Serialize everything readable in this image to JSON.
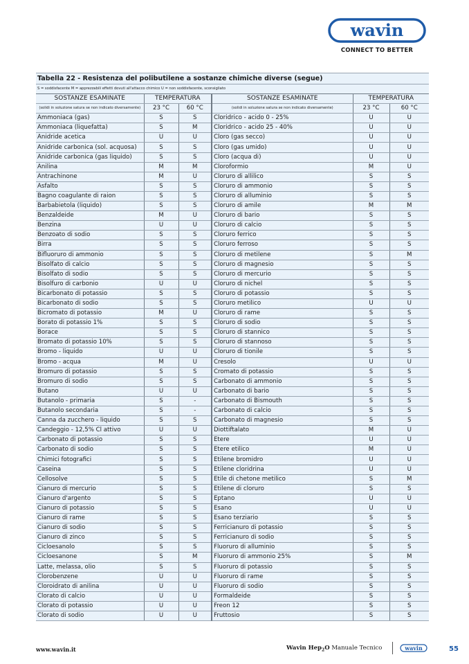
{
  "header": {
    "logo_text": "wavin",
    "tagline": "CONNECT TO BETTER",
    "brand_color": "#1e5ba8"
  },
  "table": {
    "title": "Tabella 22 - Resistenza del polibutilene a sostanze chimiche diverse (segue)",
    "legend": "S = soddisfacente  M = apprezzabili effetti dovuti all'attacco chimico  U = non soddisfacente, sconsigliato",
    "col_substance": "SOSTANZE ESAMINATE",
    "col_temperature": "TEMPERATURA",
    "col_note": "(solidi in soluzione satura se non indicato diversamente)",
    "col_23": "23 °C",
    "col_60": "60 °C",
    "rows": [
      [
        [
          "Ammoniaca (gas)",
          "S",
          "S"
        ],
        [
          "Cloridrico - acido 0 - 25%",
          "U",
          "U"
        ]
      ],
      [
        [
          "Ammoniaca (liquefatta)",
          "S",
          "M"
        ],
        [
          "Cloridrico - acido 25 - 40%",
          "U",
          "U"
        ]
      ],
      [
        [
          "Anidride acetica",
          "U",
          "U"
        ],
        [
          "Cloro (gas secco)",
          "U",
          "U"
        ]
      ],
      [
        [
          "Anidride carbonica (sol. acquosa)",
          "S",
          "S"
        ],
        [
          "Cloro (gas umido)",
          "U",
          "U"
        ]
      ],
      [
        [
          "Anidride carbonica (gas liquido)",
          "S",
          "S"
        ],
        [
          "Cloro (acqua di)",
          "U",
          "U"
        ]
      ],
      [
        [
          "Anilina",
          "M",
          "M"
        ],
        [
          "Cloroformio",
          "M",
          "U"
        ]
      ],
      [
        [
          "Antrachinone",
          "M",
          "U"
        ],
        [
          "Cloruro di allilico",
          "S",
          "S"
        ]
      ],
      [
        [
          "Asfalto",
          "S",
          "S"
        ],
        [
          "Cloruro di ammonio",
          "S",
          "S"
        ]
      ],
      [
        [
          "Bagno coagulante di raion",
          "S",
          "S"
        ],
        [
          "Cloruro di alluminio",
          "S",
          "S"
        ]
      ],
      [
        [
          "Barbabietola (liquido)",
          "S",
          "S"
        ],
        [
          "Cloruro di amile",
          "M",
          "M"
        ]
      ],
      [
        [
          "Benzaldeide",
          "M",
          "U"
        ],
        [
          "Cloruro di bario",
          "S",
          "S"
        ]
      ],
      [
        [
          "Benzina",
          "U",
          "U"
        ],
        [
          "Cloruro di calcio",
          "S",
          "S"
        ]
      ],
      [
        [
          "Benzoato di sodio",
          "S",
          "S"
        ],
        [
          "Cloruro ferrico",
          "S",
          "S"
        ]
      ],
      [
        [
          "Birra",
          "S",
          "S"
        ],
        [
          "Cloruro ferroso",
          "S",
          "S"
        ]
      ],
      [
        [
          "Bifluoruro di ammonio",
          "S",
          "S"
        ],
        [
          "Cloruro di metilene",
          "S",
          "M"
        ]
      ],
      [
        [
          "Bisolfato di calcio",
          "S",
          "S"
        ],
        [
          "Cloruro di magnesio",
          "S",
          "S"
        ]
      ],
      [
        [
          "Bisolfato di sodio",
          "S",
          "S"
        ],
        [
          "Cloruro di mercurio",
          "S",
          "S"
        ]
      ],
      [
        [
          "Bisolfuro di carbonio",
          "U",
          "U"
        ],
        [
          "Cloruro di nichel",
          "S",
          "S"
        ]
      ],
      [
        [
          "Bicarbonato di potassio",
          "S",
          "S"
        ],
        [
          "Cloruro di potassio",
          "S",
          "S"
        ]
      ],
      [
        [
          "Bicarbonato di sodio",
          "S",
          "S"
        ],
        [
          "Cloruro metilico",
          "U",
          "U"
        ]
      ],
      [
        [
          "Bicromato di potassio",
          "M",
          "U"
        ],
        [
          "Cloruro di rame",
          "S",
          "S"
        ]
      ],
      [
        [
          "Borato di potassio 1%",
          "S",
          "S"
        ],
        [
          "Cloruro di sodio",
          "S",
          "S"
        ]
      ],
      [
        [
          "Borace",
          "S",
          "S"
        ],
        [
          "Cloruro di stannico",
          "S",
          "S"
        ]
      ],
      [
        [
          "Bromato di potassio 10%",
          "S",
          "S"
        ],
        [
          "Cloruro di stannoso",
          "S",
          "S"
        ]
      ],
      [
        [
          "Bromo - liquido",
          "U",
          "U"
        ],
        [
          "Cloruro di tionile",
          "S",
          "S"
        ]
      ],
      [
        [
          "Bromo - acqua",
          "M",
          "U"
        ],
        [
          "Cresolo",
          "U",
          "U"
        ]
      ],
      [
        [
          "Bromuro di potassio",
          "S",
          "S"
        ],
        [
          "Cromato di potassio",
          "S",
          "S"
        ]
      ],
      [
        [
          "Bromuro di sodio",
          "S",
          "S"
        ],
        [
          "Carbonato di ammonio",
          "S",
          "S"
        ]
      ],
      [
        [
          "Butano",
          "U",
          "U"
        ],
        [
          "Carbonato di bario",
          "S",
          "S"
        ]
      ],
      [
        [
          "Butanolo - primaria",
          "S",
          "-"
        ],
        [
          "Carbonato di Bismouth",
          "S",
          "S"
        ]
      ],
      [
        [
          "Butanolo secondaria",
          "S",
          "-"
        ],
        [
          "Carbonato di calcio",
          "S",
          "S"
        ]
      ],
      [
        [
          "Canna da zucchero - liquido",
          "S",
          "S"
        ],
        [
          "Carbonato di magnesio",
          "S",
          "S"
        ]
      ],
      [
        [
          "Candeggio - 12,5% Cl attivo",
          "U",
          "U"
        ],
        [
          "Diottiftalato",
          "M",
          "U"
        ]
      ],
      [
        [
          "Carbonato di potassio",
          "S",
          "S"
        ],
        [
          "Etere",
          "U",
          "U"
        ]
      ],
      [
        [
          "Carbonato di sodio",
          "S",
          "S"
        ],
        [
          "Etere etilico",
          "M",
          "U"
        ]
      ],
      [
        [
          "Chimici fotografici",
          "S",
          "S"
        ],
        [
          "Etilene bromidro",
          "U",
          "U"
        ]
      ],
      [
        [
          "Caseina",
          "S",
          "S"
        ],
        [
          "Etilene cloridrina",
          "U",
          "U"
        ]
      ],
      [
        [
          "Cellosolve",
          "S",
          "S"
        ],
        [
          "Etile di chetone metilico",
          "S",
          "M"
        ]
      ],
      [
        [
          "Cianuro di mercurio",
          "S",
          "S"
        ],
        [
          "Etilene di cloruro",
          "S",
          "S"
        ]
      ],
      [
        [
          "Cianuro d'argento",
          "S",
          "S"
        ],
        [
          "Eptano",
          "U",
          "U"
        ]
      ],
      [
        [
          "Cianuro di potassio",
          "S",
          "S"
        ],
        [
          "Esano",
          "U",
          "U"
        ]
      ],
      [
        [
          "Cianuro di rame",
          "S",
          "S"
        ],
        [
          "Esano terziario",
          "S",
          "S"
        ]
      ],
      [
        [
          "Cianuro di sodio",
          "S",
          "S"
        ],
        [
          "Ferricianuro di potassio",
          "S",
          "S"
        ]
      ],
      [
        [
          "Cianuro di zinco",
          "S",
          "S"
        ],
        [
          "Ferricianuro di sodio",
          "S",
          "S"
        ]
      ],
      [
        [
          "Cicloesanolo",
          "S",
          "S"
        ],
        [
          "Fluoruro di alluminio",
          "S",
          "S"
        ]
      ],
      [
        [
          "Cicloesanone",
          "S",
          "M"
        ],
        [
          "Fluoruro di ammonio 25%",
          "S",
          "M"
        ]
      ],
      [
        [
          "Latte, melassa, olio",
          "S",
          "S"
        ],
        [
          "Fluoruro di potassio",
          "S",
          "S"
        ]
      ],
      [
        [
          "Clorobenzene",
          "U",
          "U"
        ],
        [
          "Fluoruro di rame",
          "S",
          "S"
        ]
      ],
      [
        [
          "Cloroidrato di anilina",
          "U",
          "U"
        ],
        [
          "Fluoruro di sodio",
          "S",
          "S"
        ]
      ],
      [
        [
          "Clorato di calcio",
          "U",
          "U"
        ],
        [
          "Formaldeide",
          "S",
          "S"
        ]
      ],
      [
        [
          "Clorato di potassio",
          "U",
          "U"
        ],
        [
          "Freon 12",
          "S",
          "S"
        ]
      ],
      [
        [
          "Clorato di sodio",
          "U",
          "U"
        ],
        [
          "Fruttosio",
          "S",
          "S"
        ]
      ]
    ]
  },
  "footer": {
    "url": "www.wavin.it",
    "product": "Wavin Hep",
    "product_sub": "2",
    "product_suffix": "O",
    "manual": "Manuale Tecnico",
    "page_number": "55"
  }
}
